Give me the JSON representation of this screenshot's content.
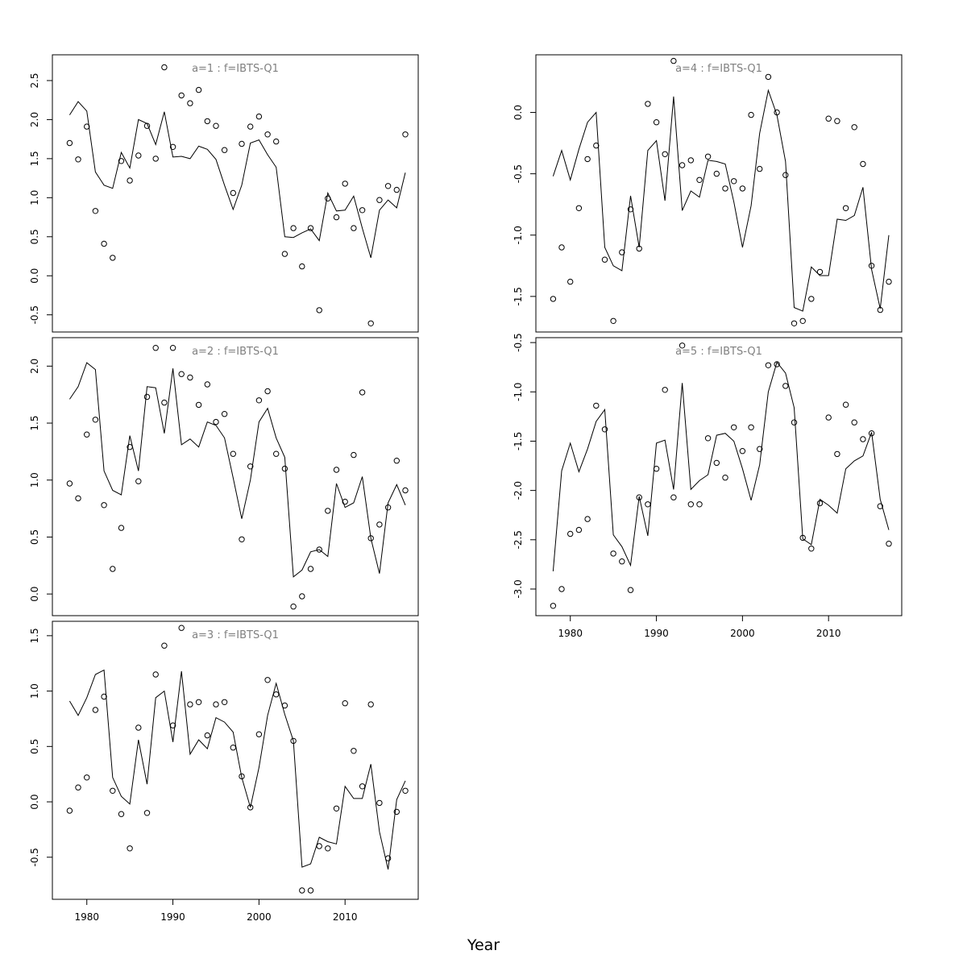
{
  "figure": {
    "xlabel": "Year"
  },
  "chart_data": [
    {
      "type": "line",
      "title": "a=1 : f=IBTS-Q1",
      "xlim": [
        1976,
        2018.5
      ],
      "ylim": [
        -0.72,
        2.83
      ],
      "xticks": [
        1980,
        1990,
        2000,
        2010
      ],
      "yticks": [
        -0.5,
        0.0,
        0.5,
        1.0,
        1.5,
        2.0,
        2.5
      ],
      "ytick_labels": [
        "-0.5",
        "0.0",
        "0.5",
        "1.0",
        "1.5",
        "2.0",
        "2.5"
      ],
      "show_x_axis": false,
      "x": [
        1978,
        1979,
        1980,
        1981,
        1982,
        1983,
        1984,
        1985,
        1986,
        1987,
        1988,
        1989,
        1990,
        1991,
        1992,
        1993,
        1994,
        1995,
        1996,
        1997,
        1998,
        1999,
        2000,
        2001,
        2002,
        2003,
        2004,
        2005,
        2006,
        2007,
        2008,
        2009,
        2010,
        2011,
        2012,
        2013,
        2014,
        2015,
        2016,
        2017
      ],
      "series": [
        {
          "kind": "line",
          "values": [
            2.06,
            2.23,
            2.11,
            1.33,
            1.16,
            1.12,
            1.58,
            1.38,
            2.0,
            1.95,
            1.68,
            2.1,
            1.52,
            1.53,
            1.5,
            1.66,
            1.62,
            1.49,
            1.16,
            0.85,
            1.16,
            1.7,
            1.74,
            1.55,
            1.39,
            0.5,
            0.49,
            0.55,
            0.6,
            0.45,
            1.06,
            0.83,
            0.84,
            1.02,
            0.61,
            0.23,
            0.84,
            0.97,
            0.87,
            1.32
          ]
        },
        {
          "kind": "points",
          "values": [
            1.7,
            1.49,
            1.91,
            0.83,
            0.41,
            0.23,
            1.47,
            1.22,
            1.54,
            1.92,
            1.5,
            2.67,
            1.65,
            2.31,
            2.21,
            2.38,
            1.98,
            1.92,
            1.61,
            1.06,
            1.69,
            1.91,
            2.04,
            1.81,
            1.72,
            0.28,
            0.61,
            0.12,
            0.61,
            -0.44,
            0.99,
            0.75,
            1.18,
            0.61,
            0.84,
            -0.61,
            0.97,
            1.15,
            1.1,
            1.81
          ]
        }
      ]
    },
    {
      "type": "line",
      "title": "a=2 : f=IBTS-Q1",
      "xlim": [
        1976,
        2018.5
      ],
      "ylim": [
        -0.19,
        2.25
      ],
      "xticks": [
        1980,
        1990,
        2000,
        2010
      ],
      "yticks": [
        0.0,
        0.5,
        1.0,
        1.5,
        2.0
      ],
      "ytick_labels": [
        "0.0",
        "0.5",
        "1.0",
        "1.5",
        "2.0"
      ],
      "show_x_axis": false,
      "x": [
        1978,
        1979,
        1980,
        1981,
        1982,
        1983,
        1984,
        1985,
        1986,
        1987,
        1988,
        1989,
        1990,
        1991,
        1992,
        1993,
        1994,
        1995,
        1996,
        1997,
        1998,
        1999,
        2000,
        2001,
        2002,
        2003,
        2004,
        2005,
        2006,
        2007,
        2008,
        2009,
        2010,
        2011,
        2012,
        2013,
        2014,
        2015,
        2016,
        2017
      ],
      "series": [
        {
          "kind": "line",
          "values": [
            1.71,
            1.82,
            2.03,
            1.97,
            1.08,
            0.91,
            0.87,
            1.39,
            1.08,
            1.82,
            1.81,
            1.41,
            1.98,
            1.31,
            1.36,
            1.29,
            1.51,
            1.48,
            1.37,
            1.02,
            0.66,
            1.0,
            1.51,
            1.63,
            1.37,
            1.2,
            0.15,
            0.21,
            0.37,
            0.39,
            0.33,
            0.97,
            0.76,
            0.8,
            1.03,
            0.49,
            0.18,
            0.8,
            0.96,
            0.78
          ]
        },
        {
          "kind": "points",
          "values": [
            0.97,
            0.84,
            1.4,
            1.53,
            0.78,
            0.22,
            0.58,
            1.29,
            0.99,
            1.73,
            2.16,
            1.68,
            2.16,
            1.93,
            1.9,
            1.66,
            1.84,
            1.51,
            1.58,
            1.23,
            0.48,
            1.12,
            1.7,
            1.78,
            1.23,
            1.1,
            -0.11,
            -0.02,
            0.22,
            0.39,
            0.73,
            1.09,
            0.81,
            1.22,
            1.77,
            0.49,
            0.61,
            0.76,
            1.17,
            0.91
          ]
        }
      ]
    },
    {
      "type": "line",
      "title": "a=3 : f=IBTS-Q1",
      "xlim": [
        1976,
        2018.5
      ],
      "ylim": [
        -0.88,
        1.63
      ],
      "xticks": [
        1980,
        1990,
        2000,
        2010
      ],
      "yticks": [
        -0.5,
        0.0,
        0.5,
        1.0,
        1.5
      ],
      "ytick_labels": [
        "-0.5",
        "0.0",
        "0.5",
        "1.0",
        "1.5"
      ],
      "show_x_axis": true,
      "x": [
        1978,
        1979,
        1980,
        1981,
        1982,
        1983,
        1984,
        1985,
        1986,
        1987,
        1988,
        1989,
        1990,
        1991,
        1992,
        1993,
        1994,
        1995,
        1996,
        1997,
        1998,
        1999,
        2000,
        2001,
        2002,
        2003,
        2004,
        2005,
        2006,
        2007,
        2008,
        2009,
        2010,
        2011,
        2012,
        2013,
        2014,
        2015,
        2016,
        2017
      ],
      "series": [
        {
          "kind": "line",
          "values": [
            0.91,
            0.78,
            0.94,
            1.15,
            1.19,
            0.22,
            0.05,
            -0.02,
            0.56,
            0.16,
            0.94,
            1.0,
            0.54,
            1.18,
            0.43,
            0.56,
            0.48,
            0.76,
            0.72,
            0.63,
            0.22,
            -0.05,
            0.31,
            0.78,
            1.07,
            0.79,
            0.55,
            -0.59,
            -0.56,
            -0.32,
            -0.36,
            -0.38,
            0.14,
            0.03,
            0.03,
            0.34,
            -0.27,
            -0.61,
            0.02,
            0.19
          ]
        },
        {
          "kind": "points",
          "values": [
            -0.08,
            0.13,
            0.22,
            0.83,
            0.95,
            0.1,
            -0.11,
            -0.42,
            0.67,
            -0.1,
            1.15,
            1.41,
            0.69,
            1.57,
            0.88,
            0.9,
            0.6,
            0.88,
            0.9,
            0.49,
            0.23,
            -0.05,
            0.61,
            1.1,
            0.97,
            0.87,
            0.55,
            -0.8,
            -0.8,
            -0.4,
            -0.42,
            -0.06,
            0.89,
            0.46,
            0.14,
            0.88,
            -0.01,
            -0.51,
            -0.09,
            0.1
          ]
        }
      ]
    },
    {
      "type": "line",
      "title": "a=4 : f=IBTS-Q1",
      "xlim": [
        1976,
        2018.5
      ],
      "ylim": [
        -1.79,
        0.47
      ],
      "xticks": [
        1980,
        1990,
        2000,
        2010
      ],
      "yticks": [
        -1.5,
        -1.0,
        -0.5,
        0.0
      ],
      "ytick_labels": [
        "-1.5",
        "-1.0",
        "-0.5",
        "0.0"
      ],
      "show_x_axis": false,
      "x": [
        1978,
        1979,
        1980,
        1981,
        1982,
        1983,
        1984,
        1985,
        1986,
        1987,
        1988,
        1989,
        1990,
        1991,
        1992,
        1993,
        1994,
        1995,
        1996,
        1997,
        1998,
        1999,
        2000,
        2001,
        2002,
        2003,
        2004,
        2005,
        2006,
        2007,
        2008,
        2009,
        2010,
        2011,
        2012,
        2013,
        2014,
        2015,
        2016,
        2017
      ],
      "series": [
        {
          "kind": "line",
          "values": [
            -0.52,
            -0.31,
            -0.55,
            -0.3,
            -0.08,
            0.0,
            -1.1,
            -1.25,
            -1.29,
            -0.68,
            -1.1,
            -0.31,
            -0.23,
            -0.72,
            0.13,
            -0.8,
            -0.64,
            -0.69,
            -0.39,
            -0.4,
            -0.42,
            -0.73,
            -1.1,
            -0.76,
            -0.17,
            0.18,
            -0.02,
            -0.4,
            -1.59,
            -1.62,
            -1.26,
            -1.33,
            -1.33,
            -0.87,
            -0.88,
            -0.84,
            -0.61,
            -1.28,
            -1.6,
            -1.0
          ]
        },
        {
          "kind": "points",
          "values": [
            -1.52,
            -1.1,
            -1.38,
            -0.78,
            -0.38,
            -0.27,
            -1.2,
            -1.7,
            -1.14,
            -0.79,
            -1.11,
            0.07,
            -0.08,
            -0.34,
            0.42,
            -0.43,
            -0.39,
            -0.55,
            -0.36,
            -0.5,
            -0.62,
            -0.56,
            -0.62,
            -0.02,
            -0.46,
            0.29,
            0.0,
            -0.51,
            -1.72,
            -1.7,
            -1.52,
            -1.3,
            -0.05,
            -0.07,
            -0.78,
            -0.12,
            -0.42,
            -1.25,
            -1.61,
            -1.38
          ]
        }
      ]
    },
    {
      "type": "line",
      "title": "a=5 : f=IBTS-Q1",
      "xlim": [
        1976,
        2018.5
      ],
      "ylim": [
        -3.27,
        -0.45
      ],
      "xticks": [
        1980,
        1990,
        2000,
        2010
      ],
      "yticks": [
        -3.0,
        -2.5,
        -2.0,
        -1.5,
        -1.0,
        -0.5
      ],
      "ytick_labels": [
        "-3.0",
        "-2.5",
        "-2.0",
        "-1.5",
        "-1.0",
        "-0.5"
      ],
      "show_x_axis": true,
      "x": [
        1978,
        1979,
        1980,
        1981,
        1982,
        1983,
        1984,
        1985,
        1986,
        1987,
        1988,
        1989,
        1990,
        1991,
        1992,
        1993,
        1994,
        1995,
        1996,
        1997,
        1998,
        1999,
        2000,
        2001,
        2002,
        2003,
        2004,
        2005,
        2006,
        2007,
        2008,
        2009,
        2010,
        2011,
        2012,
        2013,
        2014,
        2015,
        2016,
        2017
      ],
      "series": [
        {
          "kind": "line",
          "values": [
            -2.82,
            -1.8,
            -1.52,
            -1.81,
            -1.58,
            -1.3,
            -1.18,
            -2.45,
            -2.57,
            -2.76,
            -2.06,
            -2.46,
            -1.52,
            -1.49,
            -1.99,
            -0.91,
            -1.99,
            -1.9,
            -1.84,
            -1.44,
            -1.42,
            -1.5,
            -1.78,
            -2.1,
            -1.74,
            -1.0,
            -0.7,
            -0.81,
            -1.16,
            -2.49,
            -2.55,
            -2.09,
            -2.15,
            -2.23,
            -1.78,
            -1.7,
            -1.65,
            -1.41,
            -2.09,
            -2.4
          ]
        },
        {
          "kind": "points",
          "values": [
            -3.17,
            -3.0,
            -2.44,
            -2.4,
            -2.29,
            -1.14,
            -1.38,
            -2.64,
            -2.72,
            -3.01,
            -2.07,
            -2.14,
            -1.78,
            -0.98,
            -2.07,
            -0.53,
            -2.14,
            -2.14,
            -1.47,
            -1.72,
            -1.87,
            -1.36,
            -1.6,
            -1.36,
            -1.58,
            -0.73,
            -0.72,
            -0.94,
            -1.31,
            -2.48,
            -2.59,
            -2.13,
            -1.26,
            -1.63,
            -1.13,
            -1.31,
            -1.48,
            -1.42,
            -2.16,
            -2.54
          ]
        }
      ]
    }
  ]
}
